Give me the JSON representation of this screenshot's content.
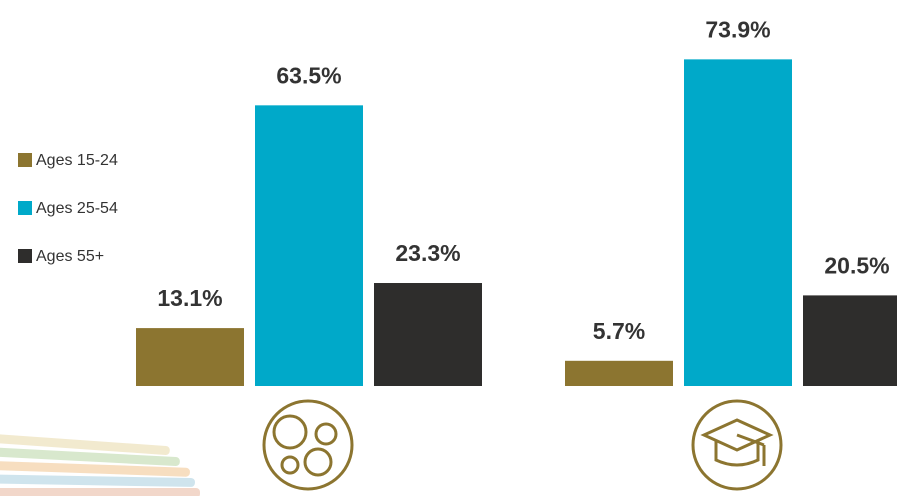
{
  "chart_data": {
    "type": "bar",
    "categories": [
      null,
      null
    ],
    "series": [
      {
        "name": "Ages 15-24",
        "color": "#8c7530",
        "values": [
          13.1,
          5.7
        ],
        "value_labels": [
          "13.1%",
          "5.7%"
        ]
      },
      {
        "name": "Ages 25-54",
        "color": "#00a9c9",
        "values": [
          63.5,
          73.9
        ],
        "value_labels": [
          "63.5%",
          "73.9%"
        ]
      },
      {
        "name": "Ages 55+",
        "color": "#2e2d2c",
        "values": [
          23.3,
          20.5
        ],
        "value_labels": [
          "23.3%",
          "20.5%"
        ]
      }
    ],
    "legend": "left"
  }
}
